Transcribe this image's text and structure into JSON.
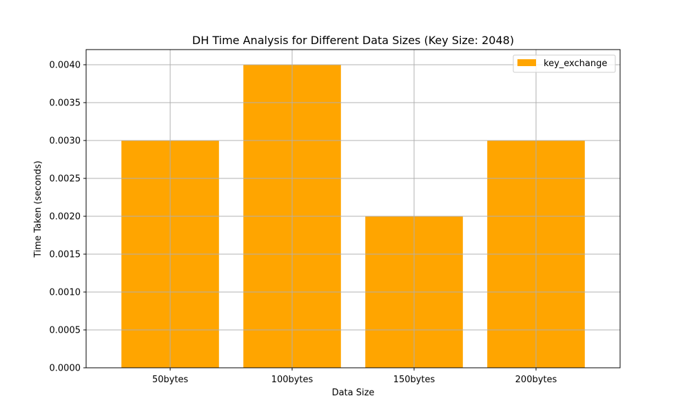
{
  "chart_data": {
    "type": "bar",
    "title": "DH Time Analysis for Different Data Sizes (Key Size: 2048)",
    "xlabel": "Data Size",
    "ylabel": "Time Taken (seconds)",
    "categories": [
      "50bytes",
      "100bytes",
      "150bytes",
      "200bytes"
    ],
    "series": [
      {
        "name": "key_exchange",
        "values": [
          0.003,
          0.004,
          0.002,
          0.003
        ],
        "color": "#ffa500"
      }
    ],
    "ylim": [
      0,
      0.0042
    ],
    "yticks": [
      0.0,
      0.0005,
      0.001,
      0.0015,
      0.002,
      0.0025,
      0.003,
      0.0035,
      0.004
    ],
    "ytick_labels": [
      "0.0000",
      "0.0005",
      "0.0010",
      "0.0015",
      "0.0020",
      "0.0025",
      "0.0030",
      "0.0035",
      "0.0040"
    ],
    "grid": true,
    "grid_color": "#b0b0b0",
    "legend_position": "top-right"
  }
}
